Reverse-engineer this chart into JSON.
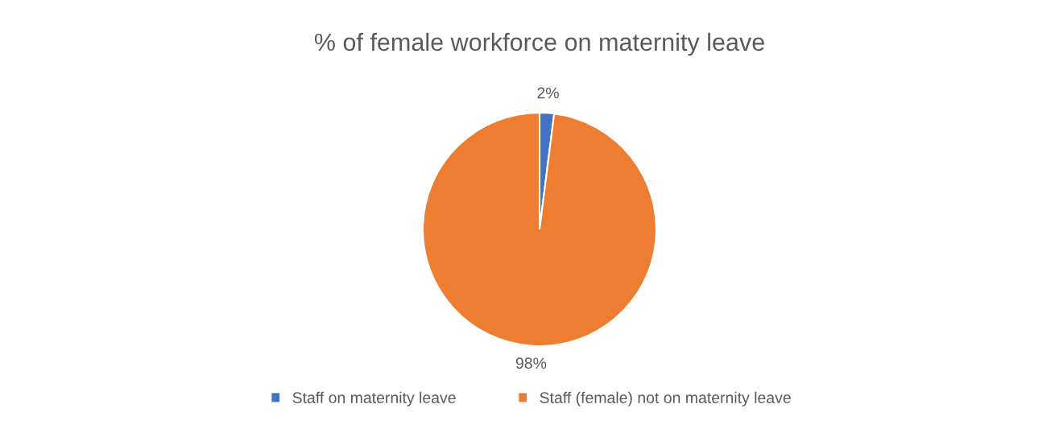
{
  "chart_data": {
    "type": "pie",
    "title": "% of female workforce on maternity leave",
    "categories": [
      "Staff on maternity leave",
      "Staff (female) not on maternity leave"
    ],
    "values": [
      2,
      98
    ],
    "colors": [
      "#4472c4",
      "#ed7d31"
    ],
    "value_labels": [
      "2%",
      "98%"
    ],
    "legend": "bottom"
  }
}
